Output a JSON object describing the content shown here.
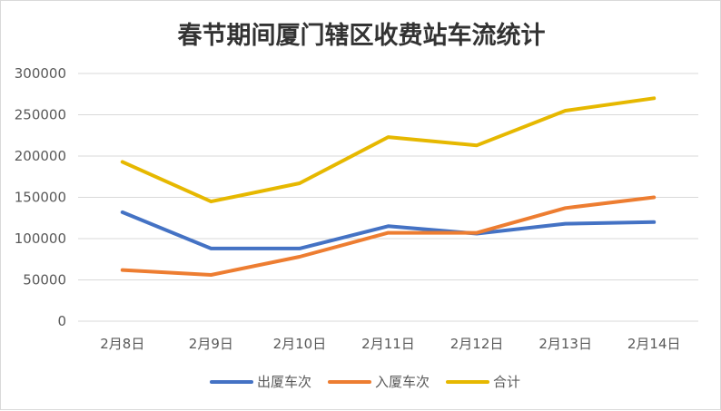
{
  "chart_data": {
    "type": "line",
    "title": "春节期间厦门辖区收费站车流统计",
    "xlabel": "",
    "ylabel": "",
    "categories": [
      "2月8日",
      "2月9日",
      "2月10日",
      "2月11日",
      "2月12日",
      "2月13日",
      "2月14日"
    ],
    "ylim": [
      0,
      300000
    ],
    "yticks": [
      0,
      50000,
      100000,
      150000,
      200000,
      250000,
      300000
    ],
    "grid": true,
    "legend": "bottom",
    "series": [
      {
        "name": "出厦车次",
        "color": "#4472C4",
        "values": [
          132000,
          88000,
          88000,
          115000,
          106000,
          118000,
          120000
        ]
      },
      {
        "name": "入厦车次",
        "color": "#ED7D31",
        "values": [
          62000,
          56000,
          78000,
          107000,
          107000,
          137000,
          150000
        ]
      },
      {
        "name": "合计",
        "color": "#E6B800",
        "values": [
          193000,
          145000,
          167000,
          223000,
          213000,
          255000,
          270000
        ]
      }
    ]
  }
}
